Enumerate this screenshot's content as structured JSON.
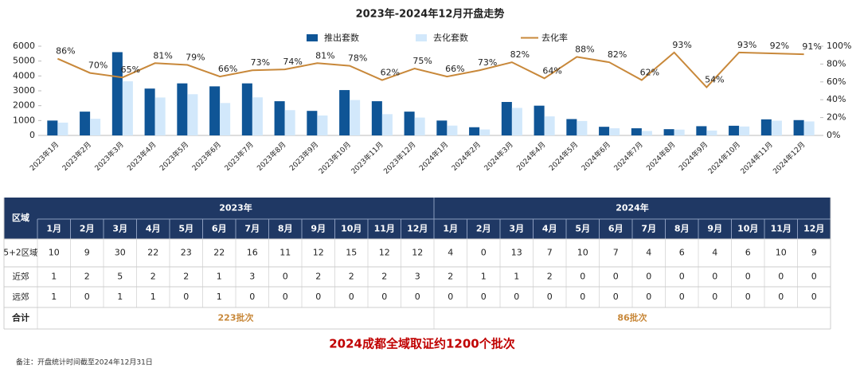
{
  "chart_data": {
    "type": "combo",
    "title": "2023年-2024年12月开盘走势",
    "categories": [
      "2023年1月",
      "2023年2月",
      "2023年3月",
      "2023年4月",
      "2023年5月",
      "2023年6月",
      "2023年7月",
      "2023年8月",
      "2023年9月",
      "2023年10月",
      "2023年11月",
      "2023年12月",
      "2024年1月",
      "2024年2月",
      "2024年3月",
      "2024年4月",
      "2024年5月",
      "2024年6月",
      "2024年7月",
      "2024年8月",
      "2024年9月",
      "2024年10月",
      "2024年11月",
      "2024年12月"
    ],
    "series": [
      {
        "name": "推出套数",
        "type": "bar",
        "color": "#0f5596",
        "values": [
          1000,
          1600,
          5600,
          3150,
          3500,
          3300,
          3500,
          2300,
          1650,
          3050,
          2300,
          1600,
          1000,
          550,
          2250,
          2000,
          1100,
          580,
          480,
          420,
          620,
          650,
          1080,
          1030
        ]
      },
      {
        "name": "去化套数",
        "type": "bar",
        "color": "#d2e8fb",
        "values": [
          860,
          1120,
          3640,
          2550,
          2770,
          2180,
          2560,
          1700,
          1340,
          2380,
          1430,
          1200,
          660,
          400,
          1850,
          1280,
          970,
          480,
          300,
          390,
          330,
          600,
          990,
          940
        ]
      },
      {
        "name": "去化率",
        "type": "line",
        "axis": "y2",
        "color": "#c8883a",
        "values": [
          86,
          70,
          65,
          81,
          79,
          66,
          73,
          74,
          81,
          78,
          62,
          75,
          66,
          73,
          82,
          64,
          88,
          82,
          62,
          93,
          54,
          93,
          92,
          91
        ],
        "value_labels": [
          "86%",
          "70%",
          "65%",
          "81%",
          "79%",
          "66%",
          "73%",
          "74%",
          "81%",
          "78%",
          "62%",
          "75%",
          "66%",
          "73%",
          "82%",
          "64%",
          "88%",
          "82%",
          "62%",
          "93%",
          "54%",
          "93%",
          "92%",
          "91%"
        ]
      }
    ],
    "ylim": [
      0,
      6000
    ],
    "yticks": [
      0,
      1000,
      2000,
      3000,
      4000,
      5000,
      6000
    ],
    "y2lim": [
      0,
      100
    ],
    "y2ticks": [
      {
        "value": 0,
        "label": "0%"
      },
      {
        "value": 20,
        "label": "20%"
      },
      {
        "value": 40,
        "label": "40%"
      },
      {
        "value": 60,
        "label": "60%"
      },
      {
        "value": 80,
        "label": "80%"
      },
      {
        "value": 100,
        "label": "100%"
      }
    ],
    "legend": "top"
  },
  "table": {
    "corner": "区域",
    "years": [
      {
        "label": "2023年",
        "months": [
          "1月",
          "2月",
          "3月",
          "4月",
          "5月",
          "6月",
          "7月",
          "8月",
          "9月",
          "10月",
          "11月",
          "12月"
        ]
      },
      {
        "label": "2024年",
        "months": [
          "1月",
          "2月",
          "3月",
          "4月",
          "5月",
          "6月",
          "7月",
          "8月",
          "9月",
          "10月",
          "11月",
          "12月"
        ]
      }
    ],
    "rows": [
      {
        "label": "5+2区域",
        "cells": [
          10,
          9,
          30,
          22,
          23,
          22,
          16,
          11,
          12,
          15,
          12,
          12,
          4,
          0,
          13,
          7,
          10,
          7,
          4,
          6,
          4,
          6,
          10,
          9
        ]
      },
      {
        "label": "近郊",
        "cells": [
          1,
          2,
          5,
          2,
          2,
          1,
          3,
          0,
          2,
          2,
          2,
          3,
          2,
          1,
          1,
          2,
          0,
          0,
          0,
          0,
          0,
          0,
          0,
          0
        ]
      },
      {
        "label": "远郊",
        "cells": [
          1,
          0,
          1,
          1,
          0,
          1,
          0,
          0,
          0,
          0,
          0,
          0,
          0,
          0,
          0,
          0,
          0,
          0,
          0,
          0,
          0,
          0,
          0,
          0
        ]
      }
    ],
    "total": {
      "label": "合计",
      "values": [
        "223批次",
        "86批次"
      ]
    }
  },
  "headline": "2024成都全域取证约1200个批次",
  "note": "备注：开盘统计时间截至2024年12月31日"
}
